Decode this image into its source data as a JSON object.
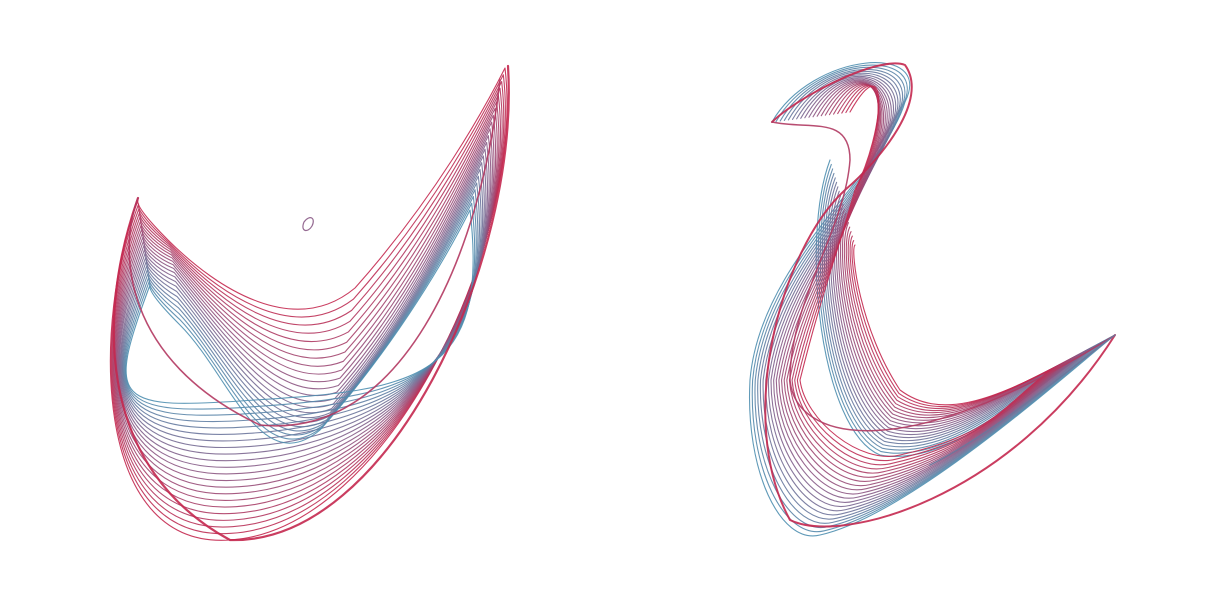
{
  "palette": {
    "background": "#ffffff",
    "gradient_start": "#c4284f",
    "gradient_mid": "#8a5a86",
    "gradient_end": "#4f8fb0"
  },
  "figures": [
    {
      "name": "left-curved-ribbon",
      "description_visible": false,
      "line_count": 22,
      "has_small_loop_artifact": true
    },
    {
      "name": "right-folded-ribbon",
      "description_visible": false,
      "line_count": 20,
      "has_small_loop_artifact": false
    }
  ]
}
